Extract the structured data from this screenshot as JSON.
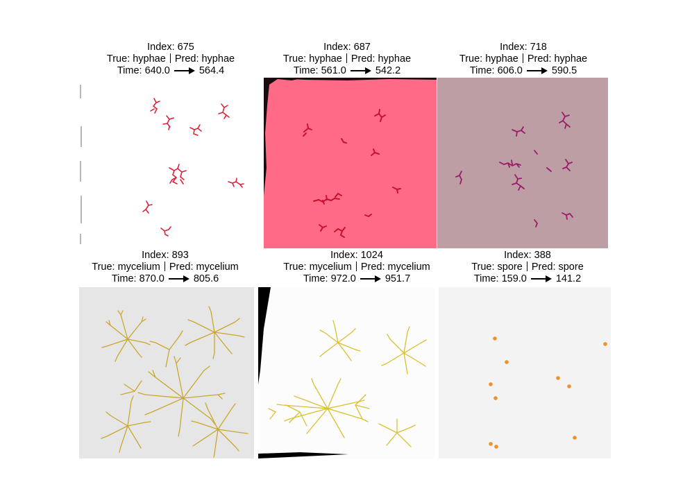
{
  "panels": [
    {
      "index_label": "Index: 675",
      "true_label": "True: hyphae",
      "pred_label": "Pred: hyphae",
      "time_from": "Time: 640.0",
      "time_to": "564.4",
      "background": "#ffffff",
      "colony_color": "#e0203a",
      "specimen_type": "hyphae"
    },
    {
      "index_label": "Index: 687",
      "true_label": "True: hyphae",
      "pred_label": "Pred: hyphae",
      "time_from": "Time: 561.0",
      "time_to": "542.2",
      "background": "#ff6b86",
      "colony_color": "#c8102e",
      "specimen_type": "hyphae"
    },
    {
      "index_label": "Index: 718",
      "true_label": "True: hyphae",
      "pred_label": "Pred: hyphae",
      "time_from": "Time: 606.0",
      "time_to": "590.5",
      "background": "#bc9ea4",
      "colony_color": "#9b1a6a",
      "specimen_type": "hyphae"
    },
    {
      "index_label": "Index: 893",
      "true_label": "True: mycelium",
      "pred_label": "Pred: mycelium",
      "time_from": "Time: 870.0",
      "time_to": "805.6",
      "background": "#e6e6e6",
      "colony_color": "#c9a72a",
      "specimen_type": "mycelium"
    },
    {
      "index_label": "Index: 1024",
      "true_label": "True: mycelium",
      "pred_label": "Pred: mycelium",
      "time_from": "Time: 972.0",
      "time_to": "951.7",
      "background": "#fcfcfc",
      "colony_color": "#d8c030",
      "specimen_type": "mycelium"
    },
    {
      "index_label": "Index: 388",
      "true_label": "True: spore",
      "pred_label": "Pred: spore",
      "time_from": "Time: 159.0",
      "time_to": "141.2",
      "background": "#f3f3f3",
      "colony_color": "#f0902a",
      "specimen_type": "spore"
    }
  ]
}
